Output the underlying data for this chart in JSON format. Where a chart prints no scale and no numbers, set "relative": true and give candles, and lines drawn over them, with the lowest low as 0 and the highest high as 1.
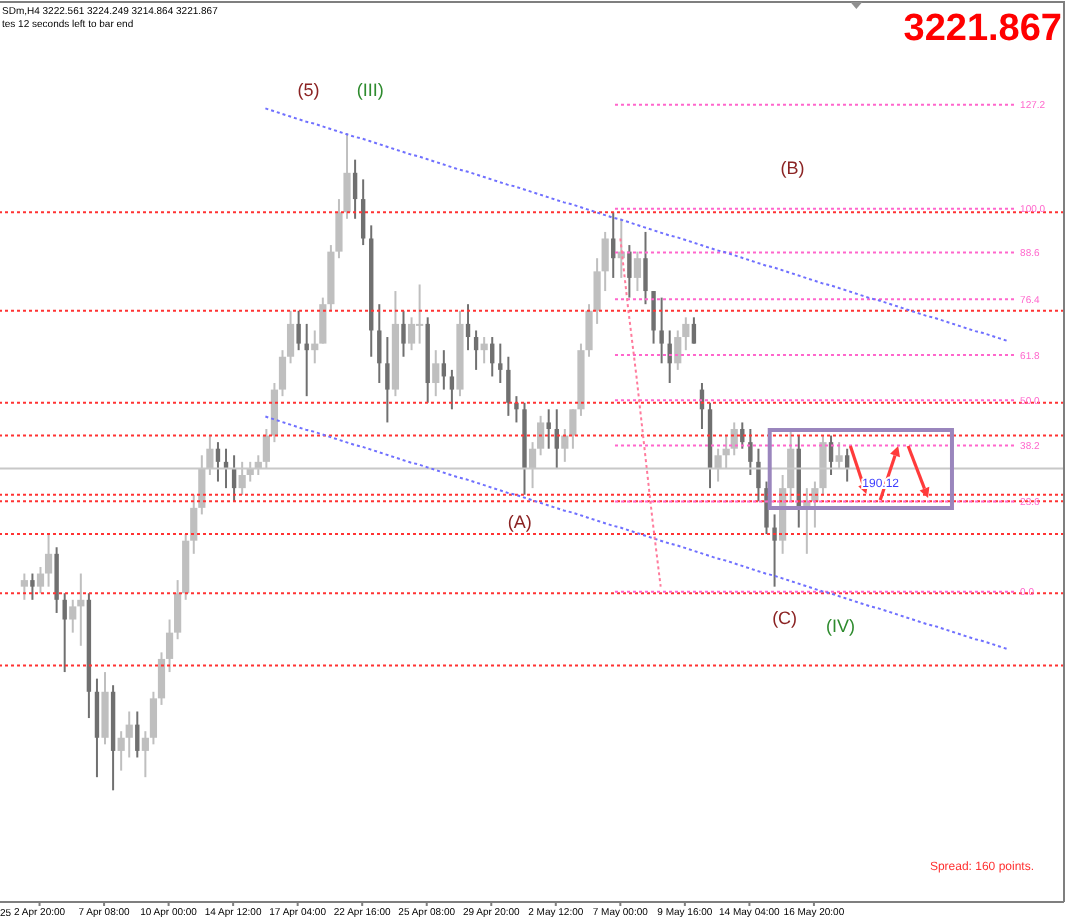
{
  "chart_data": {
    "type": "candlestick",
    "title": "SDm,H4  3222.561 3224.249 3214.864 3221.867",
    "relative": true,
    "line_style": "dotted",
    "tick_labels": "x",
    "y2lim": [
      -81,
      154
    ],
    "categories": [
      null,
      null,
      "2 Apr 20:00",
      null,
      null,
      null,
      null,
      null,
      null,
      null,
      "7 Apr 08:00",
      null,
      null,
      null,
      null,
      null,
      null,
      null,
      "10 Apr 00:00",
      null,
      null,
      null,
      null,
      null,
      null,
      null,
      "14 Apr 12:00",
      null,
      null,
      null,
      null,
      null,
      null,
      null,
      "17 Apr 04:00",
      null,
      null,
      null,
      null,
      null,
      null,
      null,
      "22 Apr 16:00",
      null,
      null,
      null,
      null,
      null,
      null,
      null,
      "25 Apr 08:00",
      null,
      null,
      null,
      null,
      null,
      null,
      null,
      "29 Apr 20:00",
      null,
      null,
      null,
      null,
      null,
      null,
      null,
      "2 May 12:00",
      null,
      null,
      null,
      null,
      null,
      null,
      null,
      "7 May 00:00",
      null,
      null,
      null,
      null,
      null,
      null,
      null,
      "9 May 16:00",
      null,
      null,
      null,
      null,
      null,
      null,
      null,
      "14 May 04:00",
      null,
      null,
      null,
      null,
      null,
      null,
      null,
      "16 May 20:00",
      null,
      null,
      null,
      null,
      null,
      null,
      null,
      null,
      null,
      null,
      null,
      null,
      null,
      null,
      null,
      null,
      null,
      null,
      null,
      null,
      null,
      null,
      null,
      null
    ],
    "ohlc": [
      [
        0.31,
        0.33,
        0.29,
        0.32
      ],
      [
        0.32,
        0.33,
        0.29,
        0.31
      ],
      [
        0.31,
        0.34,
        0.3,
        0.33
      ],
      [
        0.33,
        0.39,
        0.31,
        0.36
      ],
      [
        0.36,
        0.37,
        0.27,
        0.29
      ],
      [
        0.29,
        0.3,
        0.18,
        0.26
      ],
      [
        0.26,
        0.29,
        0.24,
        0.28
      ],
      [
        0.28,
        0.33,
        0.22,
        0.29
      ],
      [
        0.29,
        0.3,
        0.11,
        0.15
      ],
      [
        0.15,
        0.17,
        0.02,
        0.08
      ],
      [
        0.08,
        0.18,
        0.07,
        0.15
      ],
      [
        0.15,
        0.16,
        0,
        0.06
      ],
      [
        0.06,
        0.09,
        0.03,
        0.08
      ],
      [
        0.08,
        0.12,
        0.05,
        0.1
      ],
      [
        0.1,
        0.12,
        0.05,
        0.06
      ],
      [
        0.06,
        0.09,
        0.02,
        0.08
      ],
      [
        0.08,
        0.15,
        0.07,
        0.14
      ],
      [
        0.14,
        0.21,
        0.13,
        0.2
      ],
      [
        0.2,
        0.26,
        0.18,
        0.24
      ],
      [
        0.24,
        0.32,
        0.23,
        0.3
      ],
      [
        0.3,
        0.39,
        0.29,
        0.38
      ],
      [
        0.38,
        0.45,
        0.36,
        0.43
      ],
      [
        0.43,
        0.51,
        0.42,
        0.49
      ],
      [
        0.49,
        0.54,
        0.48,
        0.52
      ],
      [
        0.52,
        0.53,
        0.47,
        0.5
      ],
      [
        0.5,
        0.52,
        0.46,
        0.49
      ],
      [
        0.49,
        0.51,
        0.44,
        0.46
      ],
      [
        0.46,
        0.5,
        0.45,
        0.48
      ],
      [
        0.48,
        0.5,
        0.47,
        0.49
      ],
      [
        0.49,
        0.51,
        0.48,
        0.5
      ],
      [
        0.5,
        0.55,
        0.49,
        0.54
      ],
      [
        0.54,
        0.62,
        0.53,
        0.61
      ],
      [
        0.61,
        0.67,
        0.6,
        0.66
      ],
      [
        0.66,
        0.73,
        0.65,
        0.71
      ],
      [
        0.71,
        0.73,
        0.67,
        0.68
      ],
      [
        0.68,
        0.71,
        0.6,
        0.67
      ],
      [
        0.67,
        0.7,
        0.65,
        0.68
      ],
      [
        0.68,
        0.75,
        0.68,
        0.74
      ],
      [
        0.74,
        0.83,
        0.73,
        0.82
      ],
      [
        0.82,
        0.9,
        0.81,
        0.88
      ],
      [
        0.88,
        1,
        0.87,
        0.94
      ],
      [
        0.94,
        0.96,
        0.87,
        0.9
      ],
      [
        0.9,
        0.93,
        0.83,
        0.84
      ],
      [
        0.84,
        0.86,
        0.66,
        0.7
      ],
      [
        0.7,
        0.74,
        0.62,
        0.65
      ],
      [
        0.65,
        0.69,
        0.56,
        0.61
      ],
      [
        0.61,
        0.76,
        0.6,
        0.71
      ],
      [
        0.71,
        0.73,
        0.66,
        0.68
      ],
      [
        0.68,
        0.72,
        0.67,
        0.71
      ],
      [
        0.71,
        0.77,
        0.68,
        0.71
      ],
      [
        0.71,
        0.72,
        0.59,
        0.62
      ],
      [
        0.62,
        0.67,
        0.6,
        0.65
      ],
      [
        0.65,
        0.67,
        0.61,
        0.63
      ],
      [
        0.63,
        0.64,
        0.58,
        0.61
      ],
      [
        0.61,
        0.73,
        0.6,
        0.71
      ],
      [
        0.71,
        0.74,
        0.67,
        0.69
      ],
      [
        0.69,
        0.7,
        0.64,
        0.67
      ],
      [
        0.67,
        0.69,
        0.65,
        0.68
      ],
      [
        0.68,
        0.69,
        0.63,
        0.65
      ],
      [
        0.65,
        0.68,
        0.62,
        0.64
      ],
      [
        0.64,
        0.66,
        0.57,
        0.59
      ],
      [
        0.59,
        0.6,
        0.56,
        0.58
      ],
      [
        0.58,
        0.59,
        0.45,
        0.49
      ],
      [
        0.49,
        0.53,
        0.46,
        0.52
      ],
      [
        0.52,
        0.57,
        0.51,
        0.56
      ],
      [
        0.56,
        0.58,
        0.52,
        0.55
      ],
      [
        0.55,
        0.58,
        0.49,
        0.52
      ],
      [
        0.52,
        0.55,
        0.5,
        0.54
      ],
      [
        0.54,
        0.58,
        0.52,
        0.58
      ],
      [
        0.58,
        0.68,
        0.57,
        0.67
      ],
      [
        0.67,
        0.74,
        0.66,
        0.73
      ],
      [
        0.73,
        0.81,
        0.71,
        0.79
      ],
      [
        0.79,
        0.85,
        0.76,
        0.84
      ],
      [
        0.84,
        0.88,
        0.78,
        0.81
      ],
      [
        0.81,
        0.87,
        0.78,
        0.82
      ],
      [
        0.82,
        0.83,
        0.75,
        0.78
      ],
      [
        0.78,
        0.82,
        0.76,
        0.81
      ],
      [
        0.81,
        0.85,
        0.74,
        0.76
      ],
      [
        0.76,
        0.76,
        0.68,
        0.7
      ],
      [
        0.7,
        0.75,
        0.65,
        0.68
      ],
      [
        0.68,
        0.7,
        0.62,
        0.65
      ],
      [
        0.65,
        0.7,
        0.64,
        0.69
      ],
      [
        0.69,
        0.72,
        0.67,
        0.71
      ],
      [
        0.71,
        0.72,
        0.68,
        0.68
      ],
      [
        0.61,
        0.62,
        0.55,
        0.58
      ],
      [
        0.58,
        0.59,
        0.46,
        0.49
      ],
      [
        0.49,
        0.52,
        0.47,
        0.51
      ],
      [
        0.51,
        0.54,
        0.49,
        0.52
      ],
      [
        0.52,
        0.56,
        0.51,
        0.55
      ],
      [
        0.55,
        0.56,
        0.52,
        0.53
      ],
      [
        0.53,
        0.55,
        0.48,
        0.5
      ],
      [
        0.5,
        0.52,
        0.44,
        0.46
      ],
      [
        0.46,
        0.47,
        0.39,
        0.4
      ],
      [
        0.4,
        0.42,
        0.31,
        0.38
      ],
      [
        0.38,
        0.48,
        0.36,
        0.46
      ],
      [
        0.46,
        0.55,
        0.44,
        0.52
      ],
      [
        0.52,
        0.54,
        0.4,
        0.43
      ],
      [
        0.43,
        0.46,
        0.36,
        0.44
      ],
      [
        0.44,
        0.47,
        0.4,
        0.46
      ],
      [
        0.46,
        0.54,
        0.45,
        0.53
      ],
      [
        0.53,
        0.54,
        0.48,
        0.5
      ],
      [
        0.5,
        0.53,
        0.49,
        0.51
      ],
      [
        0.51,
        0.52,
        0.47,
        0.49
      ],
      null,
      null,
      null,
      null,
      null,
      null,
      null,
      null,
      null,
      null,
      null,
      null,
      null,
      null,
      null,
      null,
      null,
      null,
      null,
      null
    ],
    "colors": [
      "#bfbfbf",
      "#707070",
      "#bfbfbf",
      "#bfbfbf",
      "#707070",
      "#707070",
      "#bfbfbf",
      "#bfbfbf",
      "#707070",
      "#707070",
      "#bfbfbf",
      "#707070",
      "#bfbfbf",
      "#bfbfbf",
      "#707070",
      "#bfbfbf",
      "#bfbfbf",
      "#bfbfbf",
      "#bfbfbf",
      "#bfbfbf",
      "#bfbfbf",
      "#bfbfbf",
      "#bfbfbf",
      "#bfbfbf",
      "#707070",
      "#707070",
      "#707070",
      "#bfbfbf",
      "#bfbfbf",
      "#bfbfbf",
      "#bfbfbf",
      "#bfbfbf",
      "#bfbfbf",
      "#bfbfbf",
      "#707070",
      "#707070",
      "#bfbfbf",
      "#bfbfbf",
      "#bfbfbf",
      "#bfbfbf",
      "#bfbfbf",
      "#707070",
      "#707070",
      "#707070",
      "#707070",
      "#707070",
      "#bfbfbf",
      "#707070",
      "#bfbfbf",
      "#bfbfbf",
      "#707070",
      "#bfbfbf",
      "#707070",
      "#707070",
      "#bfbfbf",
      "#707070",
      "#707070",
      "#bfbfbf",
      "#707070",
      "#707070",
      "#707070",
      "#707070",
      "#707070",
      "#bfbfbf",
      "#bfbfbf",
      "#707070",
      "#707070",
      "#bfbfbf",
      "#bfbfbf",
      "#bfbfbf",
      "#bfbfbf",
      "#bfbfbf",
      "#bfbfbf",
      "#707070",
      "#bfbfbf",
      "#707070",
      "#bfbfbf",
      "#707070",
      "#707070",
      "#707070",
      "#707070",
      "#bfbfbf",
      "#bfbfbf",
      "#707070",
      "#707070",
      "#707070",
      "#bfbfbf",
      "#bfbfbf",
      "#bfbfbf",
      "#707070",
      "#707070",
      "#707070",
      "#707070",
      "#707070",
      "#bfbfbf",
      "#bfbfbf",
      "#707070",
      "#bfbfbf",
      "#bfbfbf",
      "#bfbfbf",
      "#707070",
      "#bfbfbf",
      "#707070",
      null,
      null,
      null,
      null,
      null,
      null,
      null,
      null,
      null,
      null,
      null,
      null,
      null,
      null,
      null,
      null,
      null,
      null,
      null,
      null
    ],
    "series": [
      {
        "type": "line",
        "color": "#7070ff",
        "values": [
          null,
          null,
          null,
          null,
          null,
          null,
          null,
          null,
          null,
          null,
          null,
          null,
          null,
          null,
          null,
          null,
          null,
          null,
          null,
          null,
          null,
          null,
          null,
          null,
          null,
          null,
          null,
          null,
          null,
          null,
          1.038,
          1.034,
          1.03,
          1.026,
          1.022,
          1.018,
          1.015,
          1.011,
          1.007,
          1.003,
          0.999,
          0.995,
          0.992,
          0.988,
          0.984,
          0.98,
          0.976,
          0.972,
          0.968,
          0.965,
          0.961,
          0.957,
          0.953,
          0.949,
          0.945,
          0.942,
          0.938,
          0.934,
          0.93,
          0.926,
          0.922,
          0.919,
          0.915,
          0.911,
          0.907,
          0.903,
          0.899,
          0.895,
          0.892,
          0.888,
          0.884,
          0.88,
          0.876,
          0.872,
          0.869,
          0.865,
          0.861,
          0.857,
          0.853,
          0.849,
          0.845,
          0.842,
          0.838,
          0.834,
          0.83,
          0.826,
          0.822,
          0.819,
          0.815,
          0.811,
          0.807,
          0.803,
          0.799,
          0.796,
          0.792,
          0.788,
          0.784,
          0.78,
          0.776,
          0.772,
          0.769,
          0.765,
          0.761,
          0.757,
          0.753,
          0.749,
          0.746,
          0.742,
          0.738,
          0.734,
          0.73,
          0.726,
          0.722,
          0.719,
          0.715,
          0.711,
          0.707,
          0.703,
          0.699,
          0.696,
          0.692,
          0.688,
          0.684
        ]
      },
      {
        "type": "line",
        "color": "#7070ff",
        "values": [
          null,
          null,
          null,
          null,
          null,
          null,
          null,
          null,
          null,
          null,
          null,
          null,
          null,
          null,
          null,
          null,
          null,
          null,
          null,
          null,
          null,
          null,
          null,
          null,
          null,
          null,
          null,
          null,
          null,
          null,
          0.569,
          0.565,
          0.561,
          0.557,
          0.553,
          0.549,
          0.546,
          0.542,
          0.538,
          0.534,
          0.53,
          0.526,
          0.523,
          0.519,
          0.515,
          0.511,
          0.507,
          0.503,
          0.499,
          0.496,
          0.492,
          0.488,
          0.484,
          0.48,
          0.476,
          0.473,
          0.469,
          0.465,
          0.461,
          0.457,
          0.453,
          0.45,
          0.446,
          0.442,
          0.438,
          0.434,
          0.43,
          0.426,
          0.423,
          0.419,
          0.415,
          0.411,
          0.407,
          0.403,
          0.4,
          0.396,
          0.392,
          0.388,
          0.384,
          0.38,
          0.376,
          0.373,
          0.369,
          0.365,
          0.361,
          0.357,
          0.353,
          0.35,
          0.346,
          0.342,
          0.338,
          0.334,
          0.33,
          0.327,
          0.323,
          0.319,
          0.315,
          0.311,
          0.307,
          0.303,
          0.3,
          0.296,
          0.292,
          0.288,
          0.284,
          0.28,
          0.277,
          0.273,
          0.269,
          0.265,
          0.261,
          0.257,
          0.253,
          0.25,
          0.246,
          0.242,
          0.238,
          0.234,
          0.23,
          0.227,
          0.223,
          0.219,
          0.215
        ]
      },
      {
        "type": "line",
        "color": "#ff7b9c",
        "values": [
          null,
          null,
          null,
          null,
          null,
          null,
          null,
          null,
          null,
          null,
          null,
          null,
          null,
          null,
          null,
          null,
          null,
          null,
          null,
          null,
          null,
          null,
          null,
          null,
          null,
          null,
          null,
          null,
          null,
          null,
          null,
          null,
          null,
          null,
          null,
          null,
          null,
          null,
          null,
          null,
          null,
          null,
          null,
          null,
          null,
          null,
          null,
          null,
          null,
          null,
          null,
          null,
          null,
          null,
          null,
          null,
          null,
          null,
          null,
          null,
          null,
          null,
          null,
          null,
          null,
          null,
          null,
          null,
          null,
          null,
          null,
          null,
          null,
          null,
          0.84,
          0.73,
          0.63,
          0.52,
          0.41,
          0.31,
          null,
          null,
          null,
          null,
          null,
          null,
          null,
          null,
          null,
          null,
          null,
          null,
          null,
          null,
          null,
          null,
          null,
          null,
          null,
          null,
          null,
          null,
          null,
          null,
          null,
          null,
          null,
          null,
          null,
          null,
          null,
          null,
          null,
          null,
          null,
          null,
          null,
          null,
          null,
          null,
          null,
          null,
          null
        ]
      }
    ],
    "ref_lines": [
      {
        "axis": "y",
        "value": 0.88,
        "color": "#ff3333",
        "line_style": "dotted"
      },
      {
        "axis": "y",
        "value": 0.73,
        "color": "#ff3333",
        "line_style": "dotted"
      },
      {
        "axis": "y",
        "value": 0.59,
        "color": "#ff3333",
        "line_style": "dotted"
      },
      {
        "axis": "y",
        "value": 0.54,
        "color": "#ff3333",
        "line_style": "dotted"
      },
      {
        "axis": "y",
        "value": 0.45,
        "color": "#ff3333",
        "line_style": "dotted"
      },
      {
        "axis": "y",
        "value": 0.44,
        "color": "#ff3333",
        "line_style": "dotted"
      },
      {
        "axis": "y",
        "value": 0.39,
        "color": "#ff3333",
        "line_style": "dotted"
      },
      {
        "axis": "y",
        "value": 0.3,
        "color": "#ff3333",
        "line_style": "dotted"
      },
      {
        "axis": "y",
        "value": 0.19,
        "color": "#ff3333",
        "line_style": "dotted"
      },
      {
        "axis": "y",
        "value": 0.49,
        "color": "#c8c8c8",
        "line_style": "solid"
      },
      {
        "axis": "y2",
        "value": 127.2,
        "label": "127.2",
        "color": "#ff66cc",
        "line_style": "dotted"
      },
      {
        "axis": "y2",
        "value": 100,
        "label": "100.0",
        "color": "#ff66cc",
        "line_style": "dotted"
      },
      {
        "axis": "y2",
        "value": 88.6,
        "label": "88.6",
        "color": "#ff66cc",
        "line_style": "dotted"
      },
      {
        "axis": "y2",
        "value": 76.4,
        "label": "76.4",
        "color": "#ff66cc",
        "line_style": "dotted"
      },
      {
        "axis": "y2",
        "value": 61.8,
        "label": "61.8",
        "color": "#ff66cc",
        "line_style": "dotted"
      },
      {
        "axis": "y2",
        "value": 50,
        "label": "50.0",
        "color": "#ff66cc",
        "line_style": "dotted"
      },
      {
        "axis": "y2",
        "value": 38.2,
        "label": "38.2",
        "color": "#ff66cc",
        "line_style": "dotted"
      },
      {
        "axis": "y2",
        "value": 23.6,
        "label": "23.6",
        "color": "#ff66cc",
        "line_style": "dotted"
      },
      {
        "axis": "y2",
        "value": 0,
        "label": "0.0",
        "color": "#ff66cc",
        "line_style": "dotted"
      }
    ],
    "annotations": [
      "tes 12 seconds left to bar end",
      "3221.867",
      "(5)",
      "(III)",
      "(B)",
      "(A)",
      "(C)",
      "(IV)",
      "190.12",
      "Spread: 160 points.",
      "25"
    ]
  }
}
